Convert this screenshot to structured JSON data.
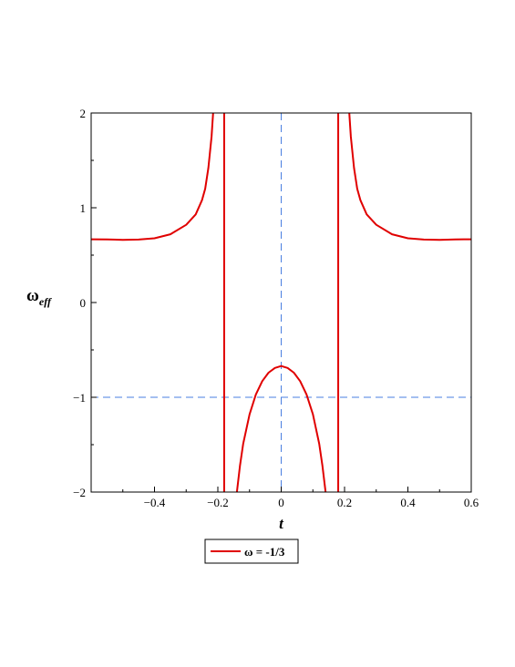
{
  "chart_data": {
    "type": "line",
    "title": "",
    "xlabel": "t",
    "ylabel": "ω",
    "ylabel_subscript": "eff",
    "xlim": [
      -0.6,
      0.6
    ],
    "ylim": [
      -2,
      2
    ],
    "x_ticks": [
      -0.4,
      -0.2,
      0,
      0.2,
      0.4,
      0.6
    ],
    "x_tick_labels": [
      "−0.4",
      "−0.2",
      "0",
      "0.2",
      "0.4",
      "0.6"
    ],
    "y_ticks": [
      -2,
      -1,
      0,
      1,
      2
    ],
    "y_tick_labels": [
      "−2",
      "−1",
      "0",
      "1",
      "2"
    ],
    "grid": false,
    "legend_position": "bottom",
    "reference_lines": [
      {
        "orientation": "vertical",
        "value": 0,
        "color": "#4a7fe0",
        "style": "dashed"
      },
      {
        "orientation": "horizontal",
        "value": -1,
        "color": "#4a7fe0",
        "style": "dashed"
      }
    ],
    "asymptotes": [
      -0.18,
      0.18
    ],
    "series": [
      {
        "name": "ω = -1/3",
        "color": "#e00000",
        "segments": [
          [
            [
              -0.6,
              0.667
            ],
            [
              -0.55,
              0.666
            ],
            [
              -0.5,
              0.662
            ],
            [
              -0.45,
              0.664
            ],
            [
              -0.4,
              0.678
            ],
            [
              -0.35,
              0.72
            ],
            [
              -0.3,
              0.82
            ],
            [
              -0.27,
              0.93
            ],
            [
              -0.25,
              1.08
            ],
            [
              -0.24,
              1.2
            ],
            [
              -0.23,
              1.42
            ],
            [
              -0.22,
              1.75
            ],
            [
              -0.215,
              2.0
            ]
          ],
          [
            [
              -0.14,
              -2.0
            ],
            [
              -0.13,
              -1.72
            ],
            [
              -0.12,
              -1.49
            ],
            [
              -0.1,
              -1.18
            ],
            [
              -0.08,
              -0.97
            ],
            [
              -0.06,
              -0.83
            ],
            [
              -0.04,
              -0.74
            ],
            [
              -0.02,
              -0.69
            ],
            [
              0,
              -0.67
            ],
            [
              0.02,
              -0.69
            ],
            [
              0.04,
              -0.74
            ],
            [
              0.06,
              -0.83
            ],
            [
              0.08,
              -0.97
            ],
            [
              0.1,
              -1.18
            ],
            [
              0.12,
              -1.49
            ],
            [
              0.13,
              -1.72
            ],
            [
              0.14,
              -2.0
            ]
          ],
          [
            [
              0.215,
              2.0
            ],
            [
              0.22,
              1.75
            ],
            [
              0.23,
              1.42
            ],
            [
              0.24,
              1.2
            ],
            [
              0.25,
              1.08
            ],
            [
              0.27,
              0.93
            ],
            [
              0.3,
              0.82
            ],
            [
              0.35,
              0.72
            ],
            [
              0.4,
              0.678
            ],
            [
              0.45,
              0.664
            ],
            [
              0.5,
              0.662
            ],
            [
              0.55,
              0.666
            ],
            [
              0.6,
              0.667
            ]
          ]
        ]
      }
    ]
  }
}
